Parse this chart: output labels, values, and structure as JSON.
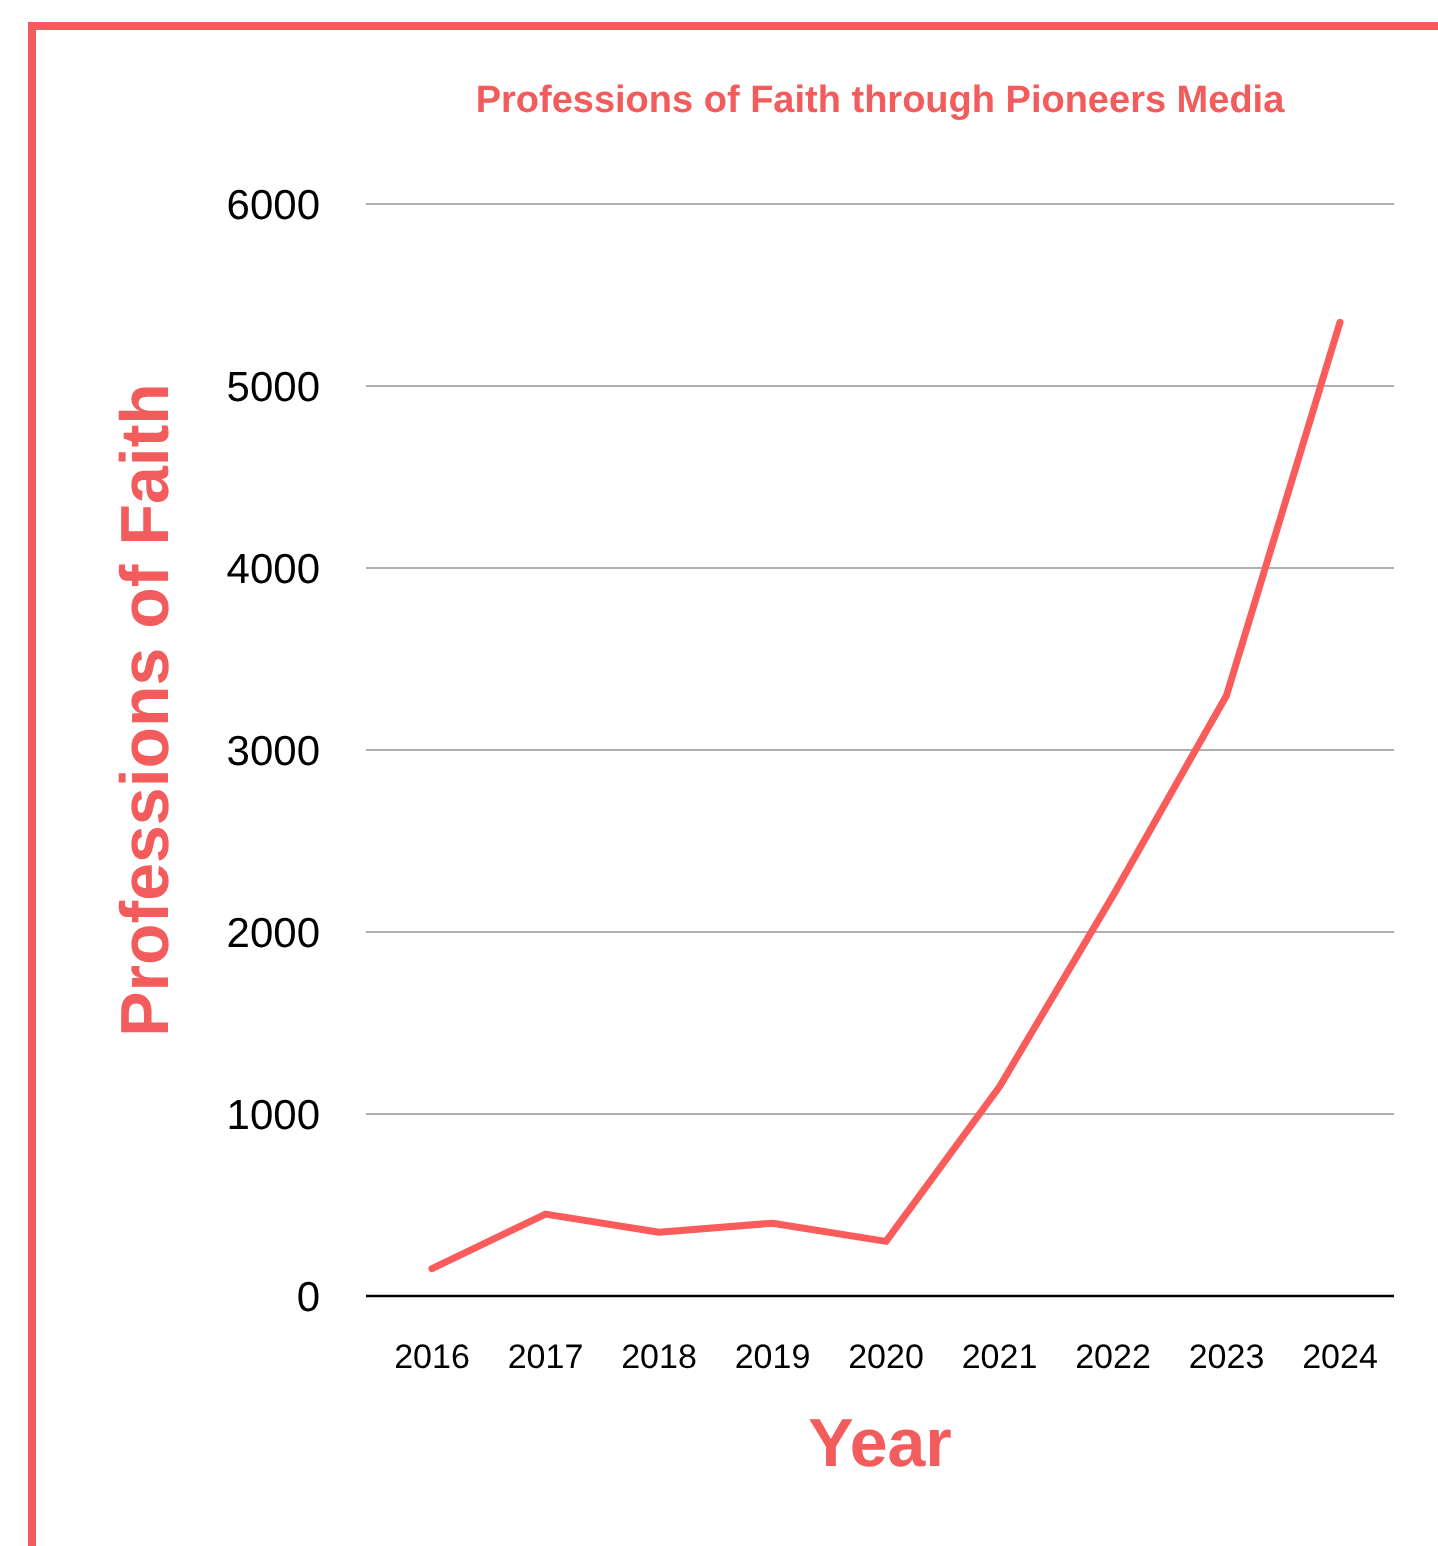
{
  "chart_data": {
    "type": "line",
    "title": "Professions of Faith through Pioneers Media",
    "xlabel": "Year",
    "ylabel": "Professions of Faith",
    "categories": [
      "2016",
      "2017",
      "2018",
      "2019",
      "2020",
      "2021",
      "2022",
      "2023",
      "2024"
    ],
    "series": [
      {
        "color": "#fa5c5c",
        "values": [
          150,
          450,
          350,
          400,
          300,
          1150,
          2200,
          3300,
          5350
        ]
      }
    ],
    "ylim": [
      0,
      6000
    ],
    "yticks": [
      0,
      1000,
      2000,
      3000,
      4000,
      5000,
      6000
    ],
    "grid": "y",
    "marker": "none",
    "line_style": "solid"
  }
}
